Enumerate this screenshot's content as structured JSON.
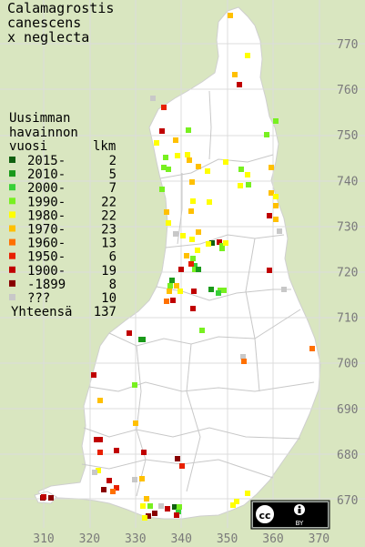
{
  "title": {
    "lines": [
      "Calamagrostis",
      "canescens",
      "x neglecta"
    ]
  },
  "legend": {
    "header_lines": [
      "Uusimman",
      "havainnon"
    ],
    "col_year": "vuosi",
    "col_count": "lkm",
    "rows": [
      {
        "label": "2015-",
        "count": "2",
        "color": "#106010"
      },
      {
        "label": "2010-",
        "count": "5",
        "color": "#1a9a1a"
      },
      {
        "label": "2000-",
        "count": "7",
        "color": "#38d038"
      },
      {
        "label": "1990-",
        "count": "22",
        "color": "#78f020"
      },
      {
        "label": "1980-",
        "count": "22",
        "color": "#ffff00"
      },
      {
        "label": "1970-",
        "count": "23",
        "color": "#ffc000"
      },
      {
        "label": "1960-",
        "count": "13",
        "color": "#ff7000"
      },
      {
        "label": "1950-",
        "count": "6",
        "color": "#e82000"
      },
      {
        "label": "1900-",
        "count": "19",
        "color": "#c00000"
      },
      {
        "label": "-1899",
        "count": "8",
        "color": "#880000"
      },
      {
        "label": "???",
        "count": "10",
        "color": "#c8c8c8"
      }
    ],
    "total_label": "Yhteensä",
    "total_count": "137"
  },
  "axes": {
    "x_ticks": [
      "310",
      "320",
      "330",
      "340",
      "350",
      "360",
      "370"
    ],
    "y_ticks": [
      "770",
      "760",
      "750",
      "740",
      "730",
      "720",
      "710",
      "700",
      "690",
      "680",
      "670"
    ]
  },
  "badge": {
    "cc": "cc",
    "by": "BY"
  }
}
